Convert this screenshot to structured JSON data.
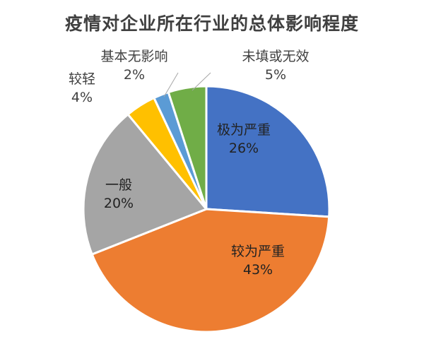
{
  "chart_data": {
    "type": "pie",
    "title": "疫情对企业所在行业的总体影响程度",
    "start": "12 o'clock, clockwise",
    "slices": [
      {
        "label": "极为严重",
        "value": 26,
        "display": "26%",
        "color": "#4472C4"
      },
      {
        "label": "较为严重",
        "value": 43,
        "display": "43%",
        "color": "#ED7D31"
      },
      {
        "label": "一般",
        "value": 20,
        "display": "20%",
        "color": "#A5A5A5"
      },
      {
        "label": "较轻",
        "value": 4,
        "display": "4%",
        "color": "#FFC000"
      },
      {
        "label": "基本无影响",
        "value": 2,
        "display": "2%",
        "color": "#5B9BD5"
      },
      {
        "label": "未填或无效",
        "value": 5,
        "display": "5%",
        "color": "#70AD47"
      }
    ]
  }
}
